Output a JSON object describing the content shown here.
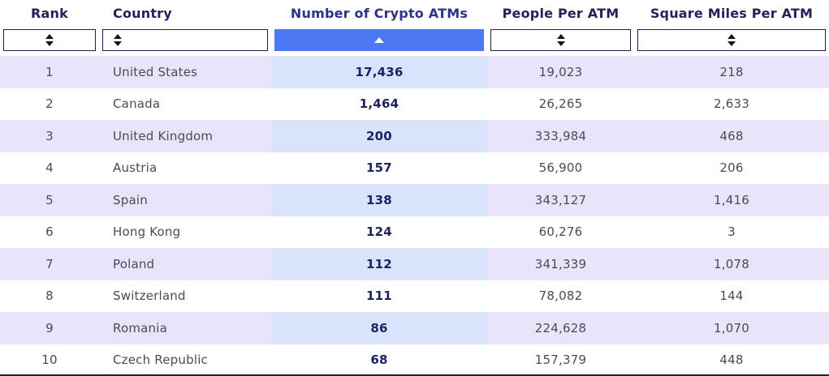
{
  "table": {
    "columns": [
      {
        "key": "rank",
        "label": "Rank",
        "align": "center",
        "sort_state": "unsorted",
        "active": false
      },
      {
        "key": "country",
        "label": "Country",
        "align": "left",
        "sort_state": "unsorted",
        "active": false
      },
      {
        "key": "atms",
        "label": "Number of Crypto ATMs",
        "align": "center",
        "sort_state": "ascending",
        "active": true
      },
      {
        "key": "people_per_atm",
        "label": "People Per ATM",
        "align": "center",
        "sort_state": "unsorted",
        "active": false
      },
      {
        "key": "sq_miles_per_atm",
        "label": "Square Miles Per ATM",
        "align": "center",
        "sort_state": "unsorted",
        "active": false
      }
    ],
    "rows": [
      {
        "rank": "1",
        "country": "United States",
        "atms": "17,436",
        "people_per_atm": "19,023",
        "sq_miles_per_atm": "218"
      },
      {
        "rank": "2",
        "country": "Canada",
        "atms": "1,464",
        "people_per_atm": "26,265",
        "sq_miles_per_atm": "2,633"
      },
      {
        "rank": "3",
        "country": "United Kingdom",
        "atms": "200",
        "people_per_atm": "333,984",
        "sq_miles_per_atm": "468"
      },
      {
        "rank": "4",
        "country": "Austria",
        "atms": "157",
        "people_per_atm": "56,900",
        "sq_miles_per_atm": "206"
      },
      {
        "rank": "5",
        "country": "Spain",
        "atms": "138",
        "people_per_atm": "343,127",
        "sq_miles_per_atm": "1,416"
      },
      {
        "rank": "6",
        "country": "Hong Kong",
        "atms": "124",
        "people_per_atm": "60,276",
        "sq_miles_per_atm": "3"
      },
      {
        "rank": "7",
        "country": "Poland",
        "atms": "112",
        "people_per_atm": "341,339",
        "sq_miles_per_atm": "1,078"
      },
      {
        "rank": "8",
        "country": "Switzerland",
        "atms": "111",
        "people_per_atm": "78,082",
        "sq_miles_per_atm": "144"
      },
      {
        "rank": "9",
        "country": "Romania",
        "atms": "86",
        "people_per_atm": "224,628",
        "sq_miles_per_atm": "1,070"
      },
      {
        "rank": "10",
        "country": "Czech Republic",
        "atms": "68",
        "people_per_atm": "157,379",
        "sq_miles_per_atm": "448"
      }
    ]
  },
  "icons": {
    "unsorted_columns": "sort-both-arrows-icon",
    "active_column": "sort-ascending-icon"
  },
  "colors": {
    "header_text": "#25215c",
    "active_header_text": "#2e3187",
    "active_sort_button": "#4d78f3",
    "sort_box_border": "#1c2047",
    "striped_row": "#e9e4fa",
    "striped_atm_cell": "#d9e3fb",
    "body_text": "#4c4b55",
    "atm_value_text": "#1d2361"
  }
}
